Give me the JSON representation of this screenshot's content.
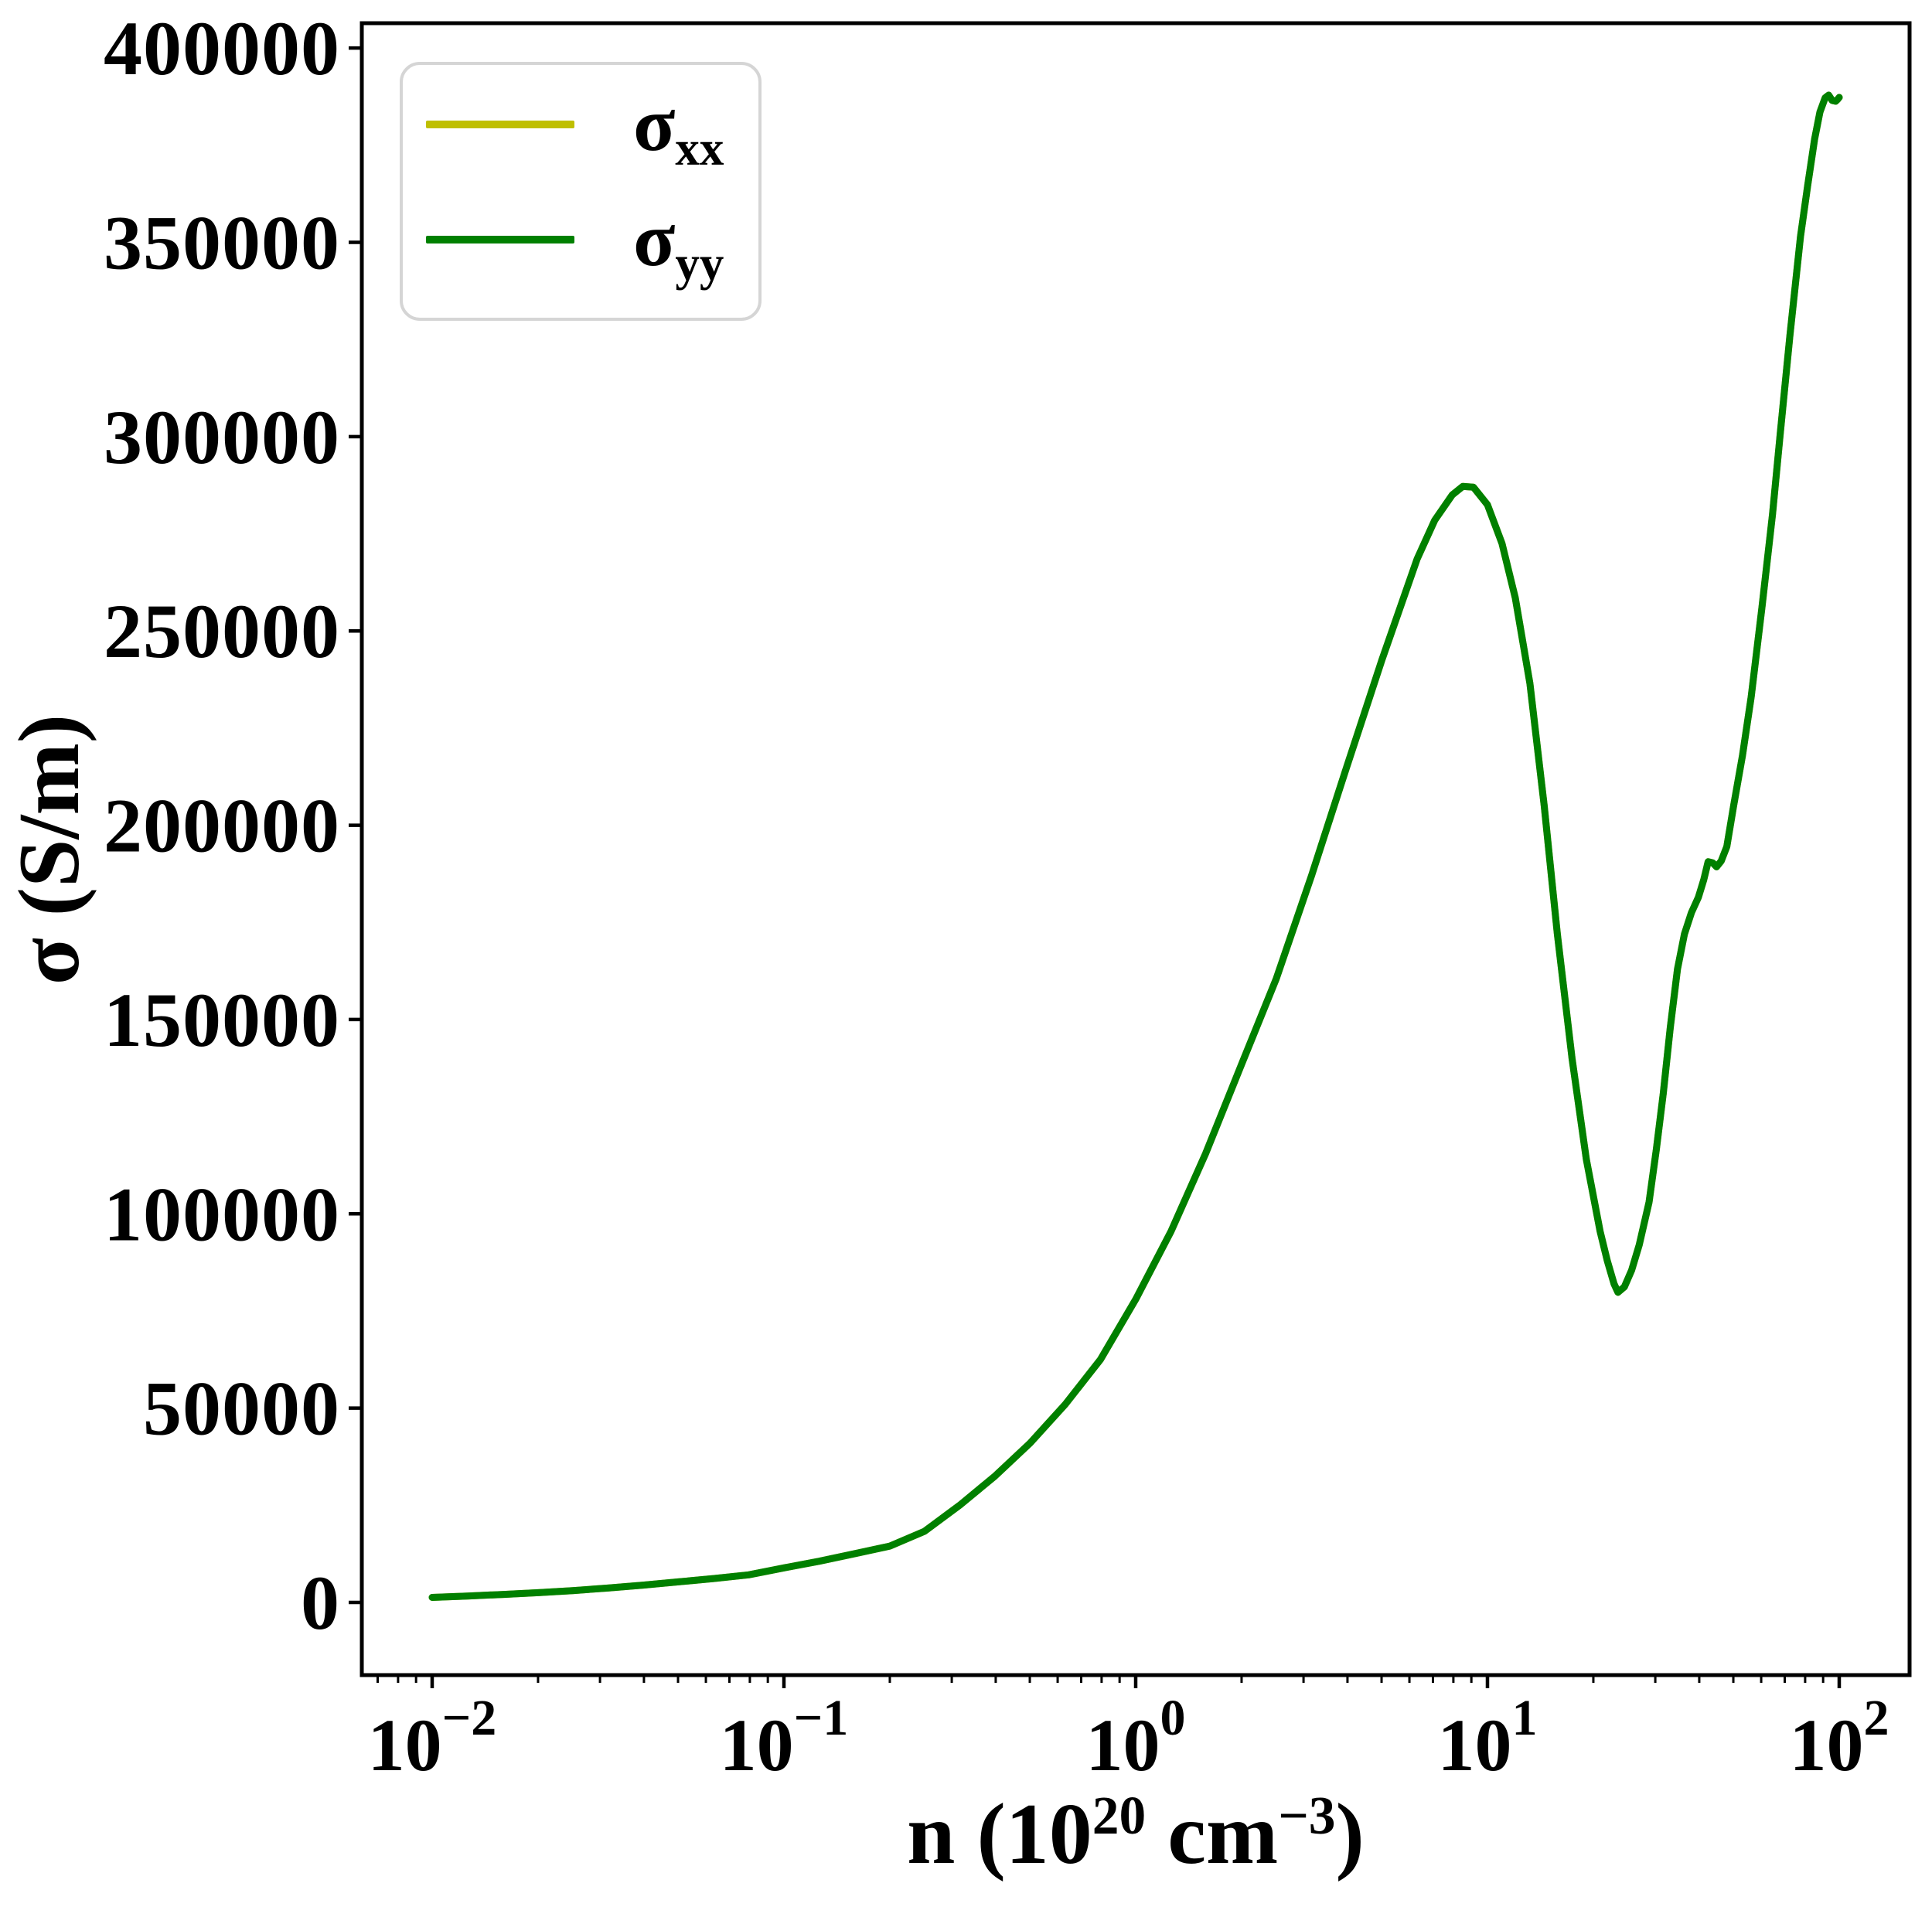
{
  "figure": {
    "background": "#ffffff"
  },
  "chart_data": {
    "type": "line",
    "title": "",
    "ylabel": "σ (S/m)",
    "xlabel_parts": {
      "prefix": "n (10",
      "sup1": "20",
      "mid": " cm",
      "sup2": "−3",
      "suffix": ")"
    },
    "x_scale": "log",
    "xlim": [
      0.00631,
      158.49
    ],
    "ylim": [
      -18700,
      406400
    ],
    "x_major_ticks": [
      0.01,
      0.1,
      1,
      10,
      100
    ],
    "x_major_tick_labels": [
      {
        "mant": "10",
        "exp": "−2"
      },
      {
        "mant": "10",
        "exp": "−1"
      },
      {
        "mant": "10",
        "exp": "0"
      },
      {
        "mant": "10",
        "exp": "1"
      },
      {
        "mant": "10",
        "exp": "2"
      }
    ],
    "y_ticks": [
      0,
      50000,
      100000,
      150000,
      200000,
      250000,
      300000,
      350000,
      400000
    ],
    "grid": false,
    "legend": {
      "position": "upper left",
      "entries": [
        {
          "base": "σ",
          "sub": "xx",
          "color": "#bfbf00"
        },
        {
          "base": "σ",
          "sub": "yy",
          "color": "#008000"
        }
      ]
    },
    "series": [
      {
        "name": "sigma_xx",
        "color": "#bfbf00",
        "linewidth": 9,
        "note": "identical to sigma_yy, hidden beneath it",
        "points": [
          [
            0.01,
            1300
          ],
          [
            0.0126,
            1650
          ],
          [
            0.0158,
            2050
          ],
          [
            0.02,
            2500
          ],
          [
            0.0251,
            3050
          ],
          [
            0.0316,
            3700
          ],
          [
            0.0398,
            4450
          ],
          [
            0.0501,
            5300
          ],
          [
            0.0631,
            6150
          ],
          [
            0.0794,
            7100
          ],
          [
            0.1,
            8900
          ],
          [
            0.126,
            10600
          ],
          [
            0.158,
            12500
          ],
          [
            0.2,
            14500
          ],
          [
            0.251,
            18300
          ],
          [
            0.316,
            25000
          ],
          [
            0.398,
            32500
          ],
          [
            0.501,
            41000
          ],
          [
            0.631,
            51000
          ],
          [
            0.794,
            62500
          ],
          [
            1.0,
            78000
          ],
          [
            1.26,
            95500
          ],
          [
            1.58,
            115500
          ],
          [
            2.0,
            138500
          ],
          [
            2.51,
            160500
          ],
          [
            3.16,
            187000
          ],
          [
            3.98,
            215000
          ],
          [
            5.01,
            242500
          ],
          [
            6.31,
            268500
          ],
          [
            7.08,
            278500
          ],
          [
            7.94,
            285000
          ],
          [
            8.51,
            287200
          ],
          [
            9.12,
            287000
          ],
          [
            10.0,
            282500
          ],
          [
            11.0,
            272500
          ],
          [
            12.0,
            258500
          ],
          [
            13.2,
            236500
          ],
          [
            14.5,
            205000
          ],
          [
            15.8,
            172000
          ],
          [
            17.4,
            140000
          ],
          [
            19.1,
            114000
          ],
          [
            20.9,
            95500
          ],
          [
            21.9,
            88000
          ],
          [
            22.9,
            82000
          ],
          [
            23.5,
            79800
          ],
          [
            24.5,
            81200
          ],
          [
            25.7,
            85500
          ],
          [
            27.0,
            92000
          ],
          [
            28.8,
            103000
          ],
          [
            30.2,
            116500
          ],
          [
            31.6,
            131000
          ],
          [
            33.1,
            148000
          ],
          [
            34.7,
            163000
          ],
          [
            36.3,
            172000
          ],
          [
            38.0,
            177500
          ],
          [
            39.8,
            181500
          ],
          [
            41.2,
            186000
          ],
          [
            42.4,
            190600
          ],
          [
            43.7,
            190300
          ],
          [
            44.8,
            189300
          ],
          [
            46.2,
            190800
          ],
          [
            47.9,
            194500
          ],
          [
            50.1,
            205000
          ],
          [
            53.1,
            218000
          ],
          [
            56.2,
            233000
          ],
          [
            60.3,
            256000
          ],
          [
            64.6,
            280000
          ],
          [
            68.0,
            301000
          ],
          [
            72.4,
            326000
          ],
          [
            77.6,
            351500
          ],
          [
            81.3,
            364500
          ],
          [
            85.1,
            376500
          ],
          [
            88.1,
            383500
          ],
          [
            91.2,
            387200
          ],
          [
            93.3,
            387900
          ],
          [
            95.5,
            386500
          ],
          [
            97.7,
            386300
          ],
          [
            99.0,
            386800
          ],
          [
            100.0,
            387300
          ]
        ]
      },
      {
        "name": "sigma_yy",
        "color": "#008000",
        "linewidth": 9,
        "points": [
          [
            0.01,
            1300
          ],
          [
            0.0126,
            1650
          ],
          [
            0.0158,
            2050
          ],
          [
            0.02,
            2500
          ],
          [
            0.0251,
            3050
          ],
          [
            0.0316,
            3700
          ],
          [
            0.0398,
            4450
          ],
          [
            0.0501,
            5300
          ],
          [
            0.0631,
            6150
          ],
          [
            0.0794,
            7100
          ],
          [
            0.1,
            8900
          ],
          [
            0.126,
            10600
          ],
          [
            0.158,
            12500
          ],
          [
            0.2,
            14500
          ],
          [
            0.251,
            18300
          ],
          [
            0.316,
            25000
          ],
          [
            0.398,
            32500
          ],
          [
            0.501,
            41000
          ],
          [
            0.631,
            51000
          ],
          [
            0.794,
            62500
          ],
          [
            1.0,
            78000
          ],
          [
            1.26,
            95500
          ],
          [
            1.58,
            115500
          ],
          [
            2.0,
            138500
          ],
          [
            2.51,
            160500
          ],
          [
            3.16,
            187000
          ],
          [
            3.98,
            215000
          ],
          [
            5.01,
            242500
          ],
          [
            6.31,
            268500
          ],
          [
            7.08,
            278500
          ],
          [
            7.94,
            285000
          ],
          [
            8.51,
            287200
          ],
          [
            9.12,
            287000
          ],
          [
            10.0,
            282500
          ],
          [
            11.0,
            272500
          ],
          [
            12.0,
            258500
          ],
          [
            13.2,
            236500
          ],
          [
            14.5,
            205000
          ],
          [
            15.8,
            172000
          ],
          [
            17.4,
            140000
          ],
          [
            19.1,
            114000
          ],
          [
            20.9,
            95500
          ],
          [
            21.9,
            88000
          ],
          [
            22.9,
            82000
          ],
          [
            23.5,
            79800
          ],
          [
            24.5,
            81200
          ],
          [
            25.7,
            85500
          ],
          [
            27.0,
            92000
          ],
          [
            28.8,
            103000
          ],
          [
            30.2,
            116500
          ],
          [
            31.6,
            131000
          ],
          [
            33.1,
            148000
          ],
          [
            34.7,
            163000
          ],
          [
            36.3,
            172000
          ],
          [
            38.0,
            177500
          ],
          [
            39.8,
            181500
          ],
          [
            41.2,
            186000
          ],
          [
            42.4,
            190600
          ],
          [
            43.7,
            190300
          ],
          [
            44.8,
            189300
          ],
          [
            46.2,
            190800
          ],
          [
            47.9,
            194500
          ],
          [
            50.1,
            205000
          ],
          [
            53.1,
            218000
          ],
          [
            56.2,
            233000
          ],
          [
            60.3,
            256000
          ],
          [
            64.6,
            280000
          ],
          [
            68.0,
            301000
          ],
          [
            72.4,
            326000
          ],
          [
            77.6,
            351500
          ],
          [
            81.3,
            364500
          ],
          [
            85.1,
            376500
          ],
          [
            88.1,
            383500
          ],
          [
            91.2,
            387200
          ],
          [
            93.3,
            387900
          ],
          [
            95.5,
            386500
          ],
          [
            97.7,
            386300
          ],
          [
            99.0,
            386800
          ],
          [
            100.0,
            387300
          ]
        ]
      }
    ]
  }
}
